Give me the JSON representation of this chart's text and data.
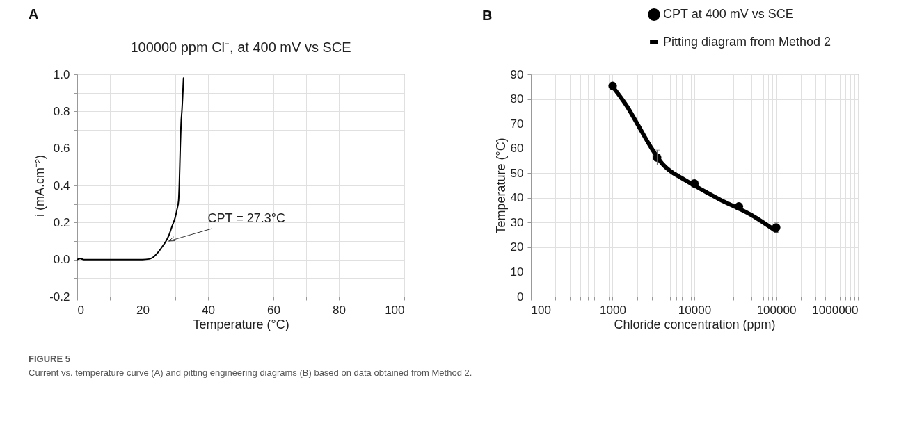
{
  "chart_data": [
    {
      "type": "line",
      "title": "100000 ppm Cl⁻, at 400 mV vs SCE",
      "xlabel": "Temperature (°C)",
      "ylabel": "i (mA.cm⁻²)",
      "x": [
        0,
        1,
        2,
        20,
        22,
        23,
        24,
        25,
        26,
        27,
        28,
        29,
        30,
        30.5,
        31,
        31.2,
        31.5,
        31.8,
        32,
        32.5
      ],
      "series": [
        {
          "color": "#000000",
          "values": [
            0,
            0.005,
            0,
            0,
            0.003,
            0.01,
            0.025,
            0.045,
            0.07,
            0.095,
            0.13,
            0.18,
            0.23,
            0.27,
            0.32,
            0.4,
            0.6,
            0.75,
            0.8,
            0.98
          ]
        }
      ],
      "xlim": [
        0,
        100
      ],
      "ylim": [
        -0.2,
        1.0
      ],
      "xticks": [
        0,
        {
          "value": 10,
          "label": null
        },
        20,
        {
          "value": 30,
          "label": null
        },
        40,
        {
          "value": 50,
          "label": null
        },
        60,
        {
          "value": 70,
          "label": null
        },
        80,
        {
          "value": 90,
          "label": null
        },
        100
      ],
      "yticks": [
        -0.2,
        {
          "value": -0.1,
          "label": null
        },
        {
          "value": 0,
          "label": "0.0"
        },
        {
          "value": 0.1,
          "label": null
        },
        0.2,
        {
          "value": 0.3,
          "label": null
        },
        0.4,
        {
          "value": 0.5,
          "label": null
        },
        0.6,
        {
          "value": 0.7,
          "label": null
        },
        0.8,
        {
          "value": 0.9,
          "label": null
        },
        {
          "value": 1.0,
          "label": "1.0"
        }
      ],
      "grid": true,
      "legend": false,
      "marker": "none",
      "line_style": "solid",
      "annotations": [
        "A",
        {
          "text": "CPT = 27.3°C",
          "x": 28,
          "y": 0.1
        },
        "FIGURE 5",
        "Current vs. temperature curve (A) and pitting engineering diagrams (B) based on data obtained from Method 2."
      ]
    },
    {
      "type": "scatter",
      "xlabel": "Chloride concentration (ppm)",
      "ylabel": "Temperature (°C)",
      "log": "x",
      "series": [
        {
          "name": "CPT at 400 mV vs SCE",
          "color": "#000000",
          "type": "scatter",
          "marker": "circle",
          "x": [
            1000,
            3500,
            10000,
            35000,
            100000
          ],
          "values": [
            85.3,
            56.3,
            45.8,
            36.5,
            28
          ],
          "errors": [
            null,
            3,
            null,
            null,
            2
          ]
        },
        {
          "name": "Pitting diagram from Method 2",
          "color": "#000000",
          "type": "line",
          "marker": "none",
          "x": [
            1000,
            1500,
            2000,
            3000,
            4000,
            5000,
            7000,
            10000,
            20000,
            50000,
            100000
          ],
          "values": [
            85,
            77,
            70,
            60,
            54,
            51,
            48,
            45,
            39.5,
            33,
            26.5
          ]
        }
      ],
      "xlim": [
        100,
        1000000
      ],
      "ylim": [
        0,
        90
      ],
      "xticks": [
        100,
        {
          "value": 200,
          "label": null
        },
        {
          "value": 300,
          "label": null
        },
        {
          "value": 400,
          "label": null
        },
        {
          "value": 500,
          "label": null
        },
        {
          "value": 600,
          "label": null
        },
        {
          "value": 700,
          "label": null
        },
        {
          "value": 800,
          "label": null
        },
        {
          "value": 900,
          "label": null
        },
        1000,
        {
          "value": 2000,
          "label": null
        },
        {
          "value": 3000,
          "label": null
        },
        {
          "value": 4000,
          "label": null
        },
        {
          "value": 5000,
          "label": null
        },
        {
          "value": 6000,
          "label": null
        },
        {
          "value": 7000,
          "label": null
        },
        {
          "value": 8000,
          "label": null
        },
        {
          "value": 9000,
          "label": null
        },
        10000,
        {
          "value": 20000,
          "label": null
        },
        {
          "value": 30000,
          "label": null
        },
        {
          "value": 40000,
          "label": null
        },
        {
          "value": 50000,
          "label": null
        },
        {
          "value": 60000,
          "label": null
        },
        {
          "value": 70000,
          "label": null
        },
        {
          "value": 80000,
          "label": null
        },
        {
          "value": 90000,
          "label": null
        },
        100000,
        {
          "value": 200000,
          "label": null
        },
        {
          "value": 300000,
          "label": null
        },
        {
          "value": 400000,
          "label": null
        },
        {
          "value": 500000,
          "label": null
        },
        {
          "value": 600000,
          "label": null
        },
        {
          "value": 700000,
          "label": null
        },
        {
          "value": 800000,
          "label": null
        },
        {
          "value": 900000,
          "label": null
        },
        1000000
      ],
      "yticks": [
        0,
        10,
        20,
        30,
        40,
        50,
        60,
        70,
        80,
        90
      ],
      "grid": true,
      "legend": "top",
      "annotations": [
        "B"
      ]
    }
  ]
}
